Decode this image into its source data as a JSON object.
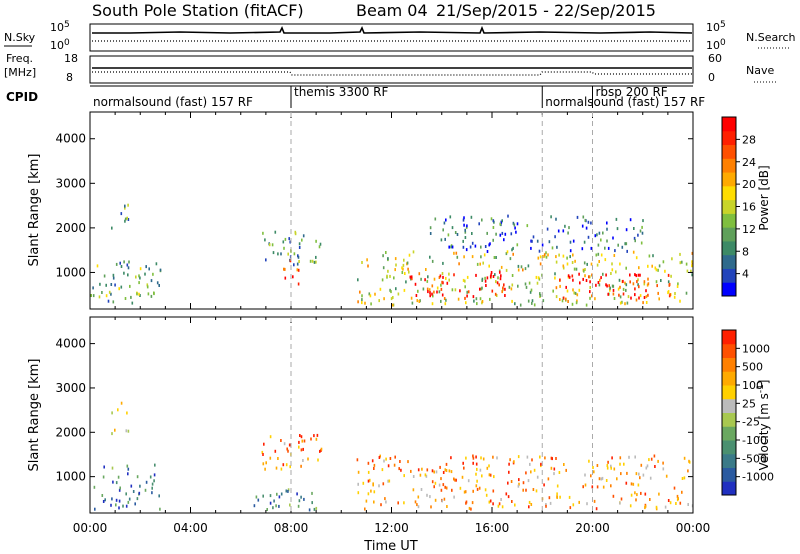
{
  "header": {
    "station": "South Pole Station (fitACF)",
    "beam": "Beam 04",
    "date_range": "21/Sep/2015 - 22/Sep/2015"
  },
  "strips": {
    "nsky_label": "N.Sky",
    "nsky_left_ticks": [
      "10^5",
      "10^0"
    ],
    "nsearch_label": "N.Search",
    "nsearch_right_ticks": [
      "10^5",
      "10^0"
    ],
    "freq_label": "Freq.",
    "freq_unit": "[MHz]",
    "freq_ticks": [
      "18",
      "8"
    ],
    "nave_label": "Nave",
    "nave_ticks": [
      "60",
      "0"
    ],
    "cpid_label": "CPID"
  },
  "cpid_segments": [
    {
      "label": "normalsound (fast) 157 RF",
      "start_hour": 0,
      "end_hour": 8
    },
    {
      "label": "themis 3300 RF",
      "start_hour": 8,
      "end_hour": 18
    },
    {
      "label": "normalsound (fast) 157 RF",
      "start_hour": 18,
      "end_hour": 20
    },
    {
      "label": "rbsp 200 RF",
      "start_hour": 20,
      "end_hour": 24
    }
  ],
  "chart_data": [
    {
      "type": "heatmap",
      "quantity": "Power",
      "xlabel": "Time UT",
      "ylabel": "Slant Range [km]",
      "xlim": [
        0,
        24
      ],
      "x_ticks": [
        "00:00",
        "04:00",
        "08:00",
        "12:00",
        "16:00",
        "20:00",
        "00:00"
      ],
      "ylim": [
        180,
        4600
      ],
      "y_ticks": [
        1000,
        2000,
        3000,
        4000
      ],
      "colorbar": {
        "label": "Power [dB]",
        "ticks": [
          4,
          8,
          12,
          16,
          20,
          24,
          28
        ],
        "colors": [
          "#0000ff",
          "#2244bb",
          "#2f6a8c",
          "#3d8a66",
          "#5fa05a",
          "#7fbf3f",
          "#c8d42a",
          "#ffdd00",
          "#ffaa00",
          "#ff8000",
          "#ff5000",
          "#ff2000",
          "#ff0000"
        ]
      },
      "regions": [
        {
          "t0": 0.0,
          "t1": 2.8,
          "r0": 250,
          "r1": 1300,
          "level": 0.35
        },
        {
          "t0": 0.8,
          "t1": 1.5,
          "r0": 1900,
          "r1": 2700,
          "level": 0.3
        },
        {
          "t0": 6.8,
          "t1": 9.2,
          "r0": 1200,
          "r1": 2000,
          "level": 0.3
        },
        {
          "t0": 7.6,
          "t1": 8.3,
          "r0": 700,
          "r1": 1300,
          "level": 0.75
        },
        {
          "t0": 10.6,
          "t1": 24.0,
          "r0": 300,
          "r1": 1500,
          "level": 0.5
        },
        {
          "t0": 12.4,
          "t1": 16.5,
          "r0": 450,
          "r1": 1050,
          "level": 0.95
        },
        {
          "t0": 18.5,
          "t1": 23.2,
          "r0": 450,
          "r1": 1000,
          "level": 0.95
        },
        {
          "t0": 13.5,
          "t1": 22.0,
          "r0": 1500,
          "r1": 2300,
          "level": 0.2
        }
      ]
    },
    {
      "type": "heatmap",
      "quantity": "Velocity",
      "xlabel": "Time UT",
      "ylabel": "Slant Range [km]",
      "xlim": [
        0,
        24
      ],
      "x_ticks": [
        "00:00",
        "04:00",
        "08:00",
        "12:00",
        "16:00",
        "20:00",
        "00:00"
      ],
      "ylim": [
        180,
        4600
      ],
      "y_ticks": [
        1000,
        2000,
        3000,
        4000
      ],
      "colorbar": {
        "label": "Velocity [m s^-1]",
        "ticks": [
          "1000",
          "500",
          "100",
          "25",
          "-25",
          "-100",
          "-500",
          "-1000"
        ],
        "colors": [
          "#2030c0",
          "#2a5aa0",
          "#3a7a88",
          "#4a9070",
          "#6aa860",
          "#a8c850",
          "#bbbbbb",
          "#ffd000",
          "#ffaa00",
          "#ff8000",
          "#ff5000",
          "#ff2000"
        ]
      },
      "regions": [
        {
          "t0": 0.0,
          "t1": 2.8,
          "r0": 250,
          "r1": 1300,
          "level": 0.2
        },
        {
          "t0": 0.8,
          "t1": 1.5,
          "r0": 1900,
          "r1": 2700,
          "level": 0.55
        },
        {
          "t0": 6.8,
          "t1": 9.2,
          "r0": 1200,
          "r1": 2000,
          "level": 0.8
        },
        {
          "t0": 10.6,
          "t1": 24.0,
          "r0": 300,
          "r1": 1500,
          "level": 0.75
        },
        {
          "t0": 6.5,
          "t1": 9.0,
          "r0": 250,
          "r1": 750,
          "level": 0.25
        }
      ]
    }
  ]
}
